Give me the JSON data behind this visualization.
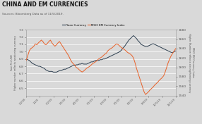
{
  "title": "CHINA AND EM CURRENCIES",
  "subtitle": "Sources: Bloomberg Data as of 11/5/2019.",
  "background_color": "#d9d9d9",
  "plot_bg_color": "#d9d9d9",
  "yuan_color": "#2d3f50",
  "msci_color": "#e8622a",
  "ylim_left": [
    6.4,
    7.3
  ],
  "ylim_right": [
    1540,
    1680
  ],
  "yticks_left": [
    6.5,
    6.6,
    6.7,
    6.8,
    6.9,
    7.0,
    7.1,
    7.2,
    7.3
  ],
  "yticks_right": [
    1540,
    1560,
    1580,
    1600,
    1620,
    1640,
    1660,
    1680
  ],
  "ylabel_left": "Yuan Per USD\nHigher number reflects weakening currency",
  "ylabel_right": "MSCI EM Currency Index\nHigher Number reflects strengthening currency",
  "xlabel_ticks": [
    "2/2/18",
    "1/1/9",
    "2/2/19",
    "3/1/19",
    "4/1/19",
    "5/1/19",
    "6/3/19",
    "7/1/19",
    "8/1/19",
    "9/3/19",
    "10/1/19",
    "11/1/19"
  ],
  "legend_yuan": "Yuan Currency",
  "legend_msci": "MSCI EM Currency Index",
  "yuan_data": [
    6.9,
    6.89,
    6.88,
    6.86,
    6.84,
    6.83,
    6.82,
    6.81,
    6.8,
    6.8,
    6.79,
    6.78,
    6.77,
    6.75,
    6.74,
    6.73,
    6.73,
    6.73,
    6.72,
    6.72,
    6.72,
    6.73,
    6.74,
    6.74,
    6.75,
    6.76,
    6.76,
    6.77,
    6.78,
    6.79,
    6.8,
    6.81,
    6.81,
    6.82,
    6.82,
    6.83,
    6.83,
    6.84,
    6.83,
    6.83,
    6.83,
    6.84,
    6.85,
    6.86,
    6.86,
    6.87,
    6.88,
    6.88,
    6.88,
    6.89,
    6.89,
    6.9,
    6.9,
    6.91,
    6.92,
    6.93,
    6.94,
    6.95,
    6.96,
    6.97,
    6.98,
    6.99,
    7.0,
    7.02,
    7.05,
    7.07,
    7.1,
    7.13,
    7.16,
    7.18,
    7.2,
    7.22,
    7.2,
    7.18,
    7.15,
    7.13,
    7.1,
    7.09,
    7.08,
    7.07,
    7.07,
    7.08,
    7.09,
    7.1,
    7.11,
    7.1,
    7.09,
    7.08,
    7.07,
    7.06,
    7.05,
    7.04,
    7.03,
    7.02,
    7.01,
    7.0,
    6.99,
    6.99,
    7.0,
    7.01
  ],
  "msci_data": [
    1615,
    1625,
    1635,
    1640,
    1642,
    1645,
    1650,
    1648,
    1652,
    1655,
    1658,
    1655,
    1650,
    1648,
    1651,
    1655,
    1658,
    1652,
    1648,
    1645,
    1648,
    1652,
    1655,
    1650,
    1645,
    1640,
    1635,
    1630,
    1625,
    1618,
    1612,
    1608,
    1605,
    1600,
    1598,
    1595,
    1592,
    1590,
    1592,
    1595,
    1598,
    1600,
    1602,
    1605,
    1608,
    1610,
    1612,
    1615,
    1618,
    1620,
    1622,
    1625,
    1628,
    1630,
    1635,
    1638,
    1640,
    1642,
    1645,
    1648,
    1650,
    1648,
    1645,
    1642,
    1640,
    1638,
    1635,
    1632,
    1630,
    1628,
    1625,
    1620,
    1610,
    1598,
    1588,
    1578,
    1568,
    1558,
    1548,
    1542,
    1545,
    1548,
    1552,
    1555,
    1558,
    1562,
    1565,
    1568,
    1572,
    1575,
    1578,
    1582,
    1590,
    1600,
    1610,
    1618,
    1625,
    1630,
    1635,
    1640
  ]
}
